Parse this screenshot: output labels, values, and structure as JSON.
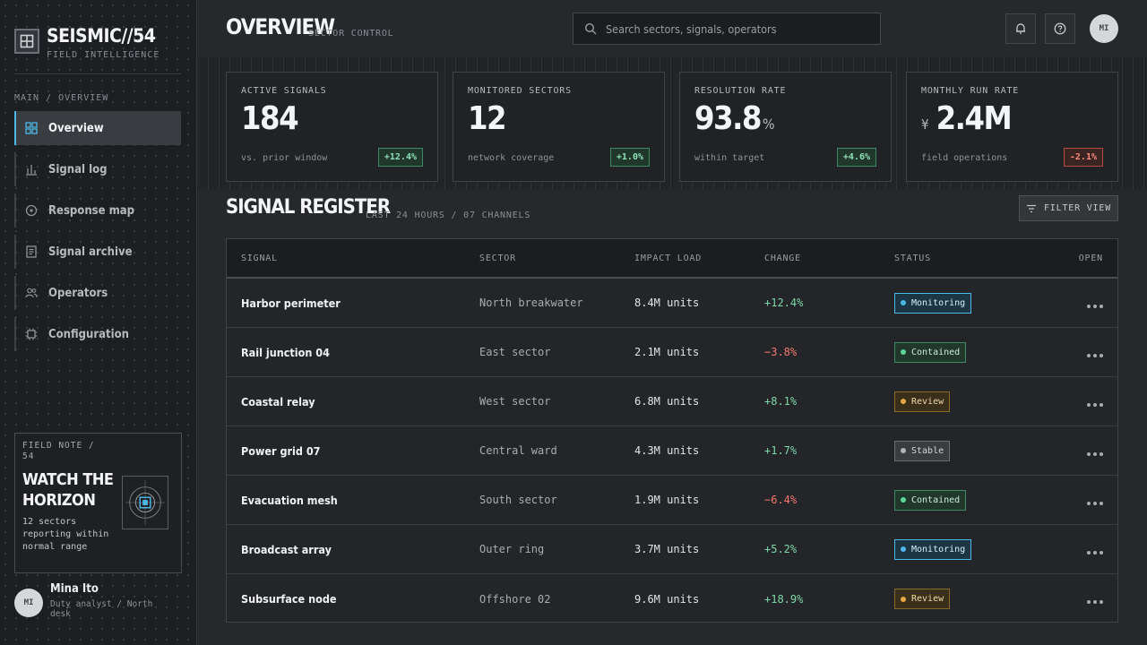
{
  "brand": {
    "title": "SEISMIC//54",
    "subtitle": "FIELD INTELLIGENCE"
  },
  "nav": {
    "section_label": "MAIN / OVERVIEW",
    "items": [
      {
        "label": "Overview",
        "icon": "grid-icon",
        "active": true
      },
      {
        "label": "Signal log",
        "icon": "bar-chart-icon"
      },
      {
        "label": "Response map",
        "icon": "target-icon"
      },
      {
        "label": "Signal archive",
        "icon": "document-icon"
      },
      {
        "label": "Operators",
        "icon": "users-icon"
      },
      {
        "label": "Configuration",
        "icon": "chip-icon"
      }
    ]
  },
  "field_note": {
    "label": "FIELD NOTE / 54",
    "title": "WATCH THE HORIZON",
    "text": "12 sectors reporting within normal range"
  },
  "user": {
    "initials": "MI",
    "name": "Mina Ito",
    "role": "Duty analyst / North desk"
  },
  "header": {
    "title": "OVERVIEW",
    "subtitle": "SECTOR CONTROL",
    "search_placeholder": "Search sectors, signals, operators",
    "avatar_initials": "MI"
  },
  "kpis": [
    {
      "label": "ACTIVE SIGNALS",
      "value": "184",
      "unit": "",
      "prefix": "",
      "note": "vs. prior window",
      "delta": "+12.4%",
      "trend": "up"
    },
    {
      "label": "MONITORED SECTORS",
      "value": "12",
      "unit": "",
      "prefix": "",
      "note": "network coverage",
      "delta": "+1.0%",
      "trend": "up"
    },
    {
      "label": "RESOLUTION RATE",
      "value": "93.8",
      "unit": "%",
      "prefix": "",
      "note": "within target",
      "delta": "+4.6%",
      "trend": "up"
    },
    {
      "label": "MONTHLY RUN RATE",
      "value": "2.4M",
      "unit": "",
      "prefix": "¥",
      "note": "field operations",
      "delta": "-2.1%",
      "trend": "down"
    }
  ],
  "register": {
    "title": "SIGNAL REGISTER",
    "subtitle": "LAST 24 HOURS / 07 CHANNELS",
    "filter_label": "FILTER VIEW",
    "columns": [
      "SIGNAL",
      "SECTOR",
      "IMPACT LOAD",
      "CHANGE",
      "STATUS",
      "OPEN"
    ],
    "rows": [
      {
        "signal": "Harbor perimeter",
        "sector": "North breakwater",
        "load": "8.4M units",
        "change": "+12.4%",
        "trend": "up",
        "status": "Monitoring"
      },
      {
        "signal": "Rail junction 04",
        "sector": "East sector",
        "load": "2.1M units",
        "change": "−3.8%",
        "trend": "down",
        "status": "Contained"
      },
      {
        "signal": "Coastal relay",
        "sector": "West sector",
        "load": "6.8M units",
        "change": "+8.1%",
        "trend": "up",
        "status": "Review"
      },
      {
        "signal": "Power grid 07",
        "sector": "Central ward",
        "load": "4.3M units",
        "change": "+1.7%",
        "trend": "up",
        "status": "Stable"
      },
      {
        "signal": "Evacuation mesh",
        "sector": "South sector",
        "load": "1.9M units",
        "change": "−6.4%",
        "trend": "down",
        "status": "Contained"
      },
      {
        "signal": "Broadcast array",
        "sector": "Outer ring",
        "load": "3.7M units",
        "change": "+5.2%",
        "trend": "up",
        "status": "Monitoring"
      },
      {
        "signal": "Subsurface node",
        "sector": "Offshore 02",
        "load": "9.6M units",
        "change": "+18.9%",
        "trend": "up",
        "status": "Review"
      }
    ]
  },
  "colors": {
    "accent": "#4cb8e8",
    "positive": "#7ed8a8",
    "negative": "#f2786e",
    "warning": "#e6a945"
  }
}
